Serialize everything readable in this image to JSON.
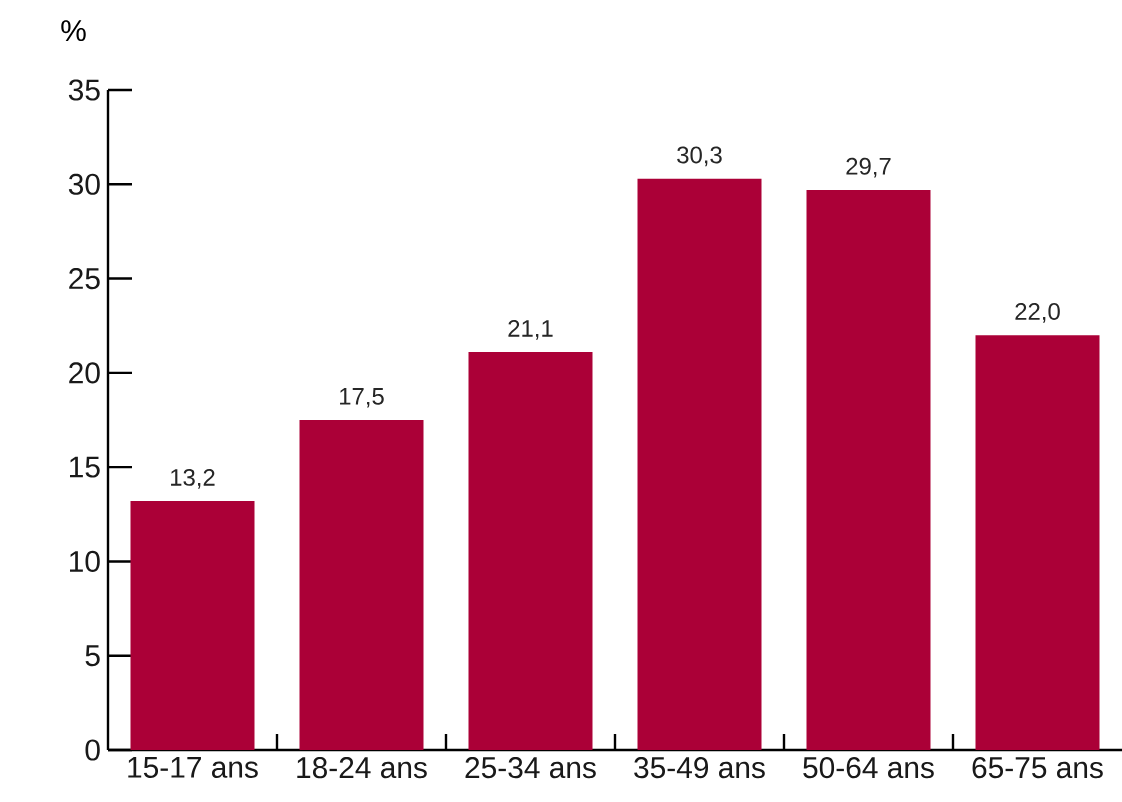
{
  "chart_data": {
    "type": "bar",
    "ylabel": "%",
    "categories": [
      "15-17 ans",
      "18-24 ans",
      "25-34 ans",
      "35-49 ans",
      "50-64 ans",
      "65-75 ans"
    ],
    "values": [
      13.2,
      17.5,
      21.1,
      30.3,
      29.7,
      22.0
    ],
    "value_labels": [
      "13,2",
      "17,5",
      "21,1",
      "30,3",
      "29,7",
      "22,0"
    ],
    "color": "#ab0037",
    "ylim": [
      0,
      35
    ],
    "yticks": [
      0,
      5,
      10,
      15,
      20,
      25,
      30,
      35
    ]
  }
}
